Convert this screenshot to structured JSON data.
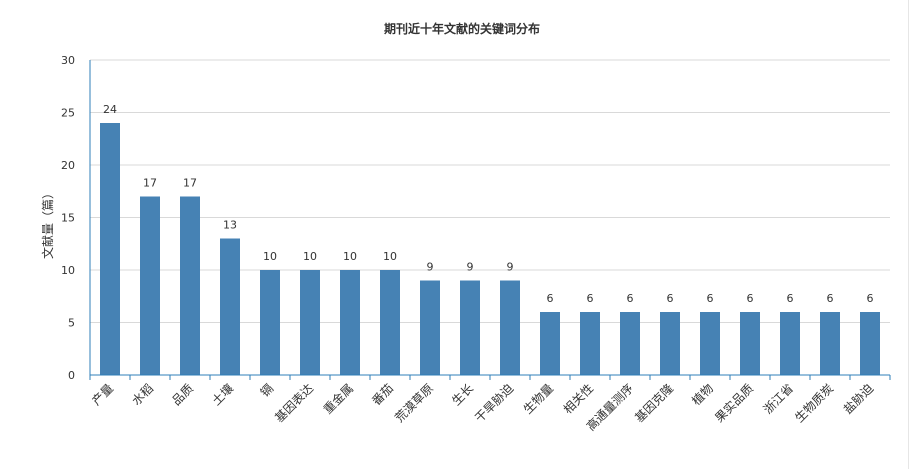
{
  "chart_data": {
    "type": "bar",
    "title": "期刊近十年文献的关键词分布",
    "xlabel": "",
    "ylabel": "文献量（篇）",
    "ylim": [
      0,
      30
    ],
    "yticks": [
      0,
      5,
      10,
      15,
      20,
      25,
      30
    ],
    "grid": true,
    "legend": "none",
    "color": "#4682b4",
    "categories": [
      "产量",
      "水稻",
      "品质",
      "土壤",
      "镉",
      "基因表达",
      "重金属",
      "番茄",
      "荒漠草原",
      "生长",
      "干旱胁迫",
      "生物量",
      "相关性",
      "高通量测序",
      "基因克隆",
      "植物",
      "果实品质",
      "浙江省",
      "生物质炭",
      "盐胁迫"
    ],
    "values": [
      24,
      17,
      17,
      13,
      10,
      10,
      10,
      10,
      9,
      9,
      9,
      6,
      6,
      6,
      6,
      6,
      6,
      6,
      6,
      6
    ]
  }
}
